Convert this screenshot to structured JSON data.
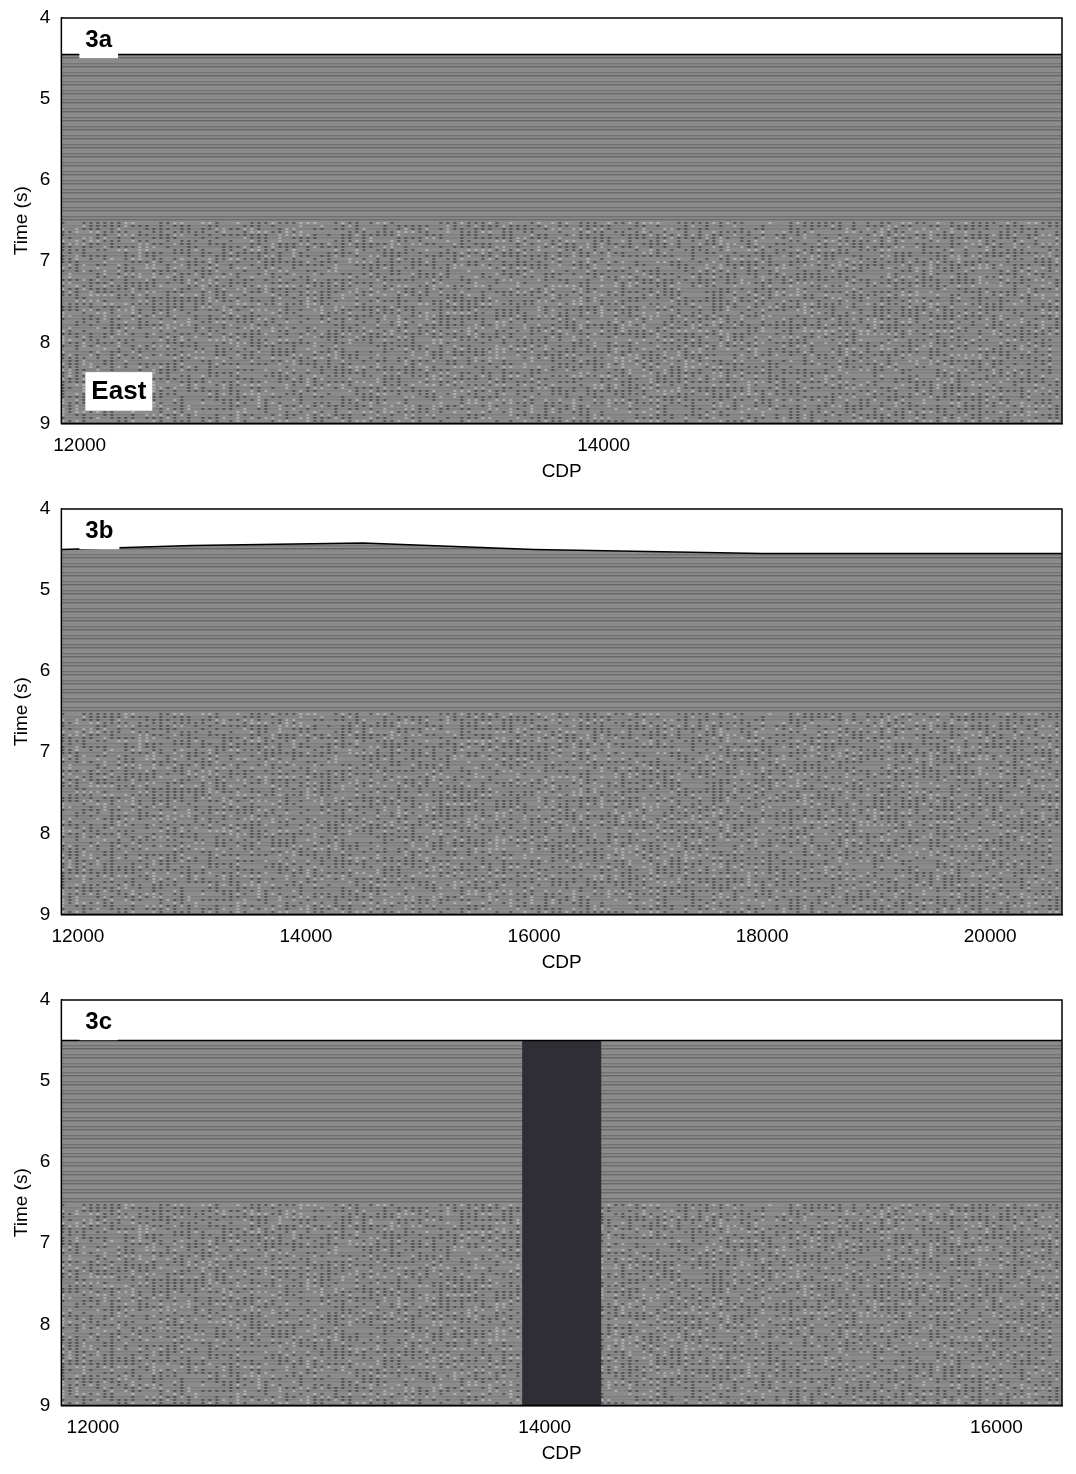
{
  "chart_data": [
    {
      "type": "seismic",
      "title": "3a",
      "annotations": [
        "East"
      ],
      "x_label": "CDP",
      "y_label": "Time (s)",
      "xlim": [
        11930,
        15750
      ],
      "xticks": [
        12000,
        14000
      ],
      "ylim": [
        9,
        4
      ],
      "yticks": [
        4,
        5,
        6,
        7,
        8,
        9
      ],
      "grid": false,
      "seafloor": {
        "x": [
          11930,
          13000,
          14000,
          15000,
          15750
        ],
        "y": [
          4.45,
          4.45,
          4.45,
          4.45,
          4.45
        ]
      }
    },
    {
      "type": "seismic",
      "title": "3b",
      "x_label": "CDP",
      "y_label": "Time (s)",
      "xlim": [
        11855,
        20630
      ],
      "xticks": [
        12000,
        14000,
        16000,
        18000,
        20000
      ],
      "ylim": [
        9,
        4
      ],
      "yticks": [
        4,
        5,
        6,
        7,
        8,
        9
      ],
      "grid": false,
      "seafloor": {
        "x": [
          11855,
          13000,
          14500,
          16000,
          18000,
          20630
        ],
        "y": [
          4.5,
          4.45,
          4.42,
          4.5,
          4.55,
          4.55
        ]
      }
    },
    {
      "type": "seismic",
      "title": "3c",
      "x_label": "CDP",
      "y_label": "Time (s)",
      "xlim": [
        11860,
        16290
      ],
      "xticks": [
        12000,
        14000,
        16000
      ],
      "ylim": [
        9,
        4
      ],
      "yticks": [
        4,
        5,
        6,
        7,
        8,
        9
      ],
      "grid": false,
      "seafloor": {
        "x": [
          11860,
          13000,
          14000,
          15000,
          16290
        ],
        "y": [
          4.5,
          4.5,
          4.5,
          4.5,
          4.5
        ]
      },
      "dark_band": [
        13900,
        14250
      ]
    }
  ]
}
